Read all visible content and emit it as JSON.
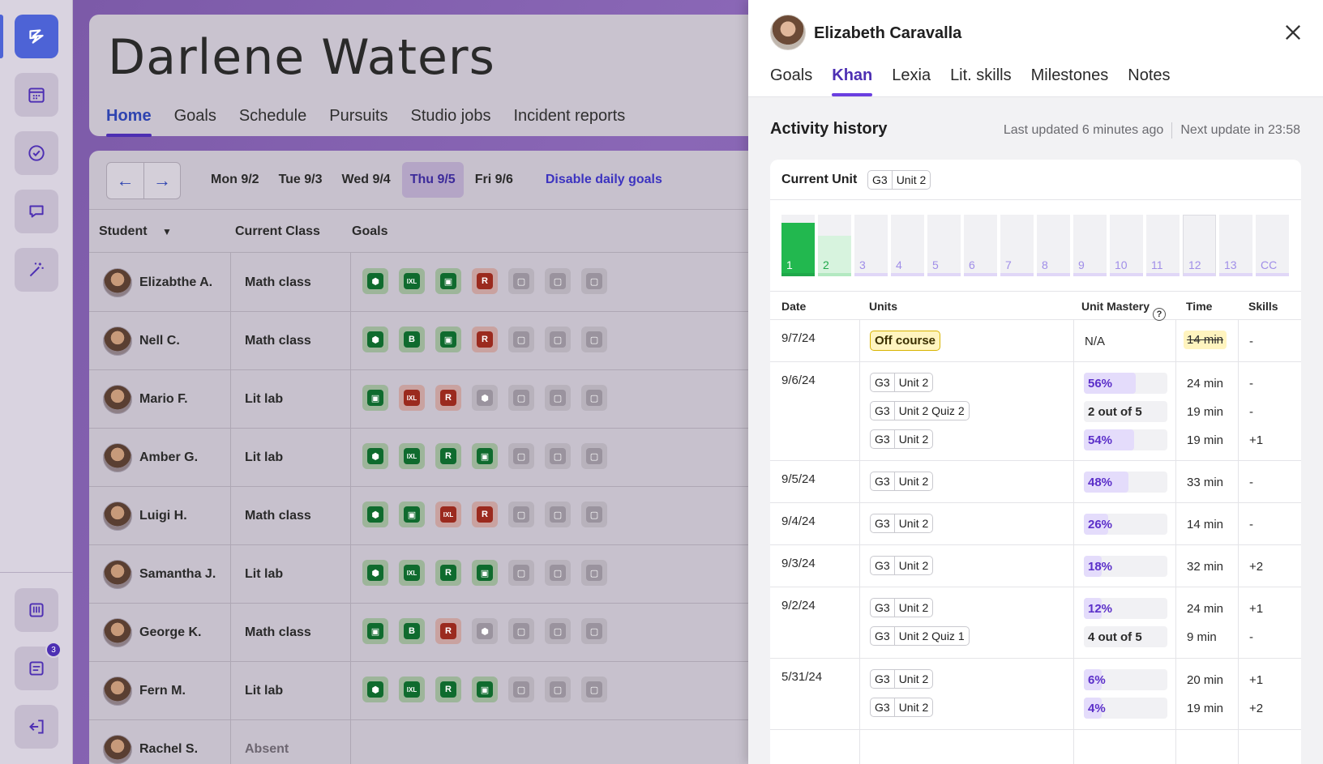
{
  "student": {
    "name": "Darlene Waters",
    "nav": [
      "Home",
      "Goals",
      "Schedule",
      "Pursuits",
      "Studio jobs",
      "Incident reports"
    ]
  },
  "rail": {
    "badge_count": "3"
  },
  "schedule": {
    "days": [
      "Mon 9/2",
      "Tue 9/3",
      "Wed 9/4",
      "Thu 9/5",
      "Fri 9/6"
    ],
    "active_day": "Thu 9/5",
    "disable_link": "Disable daily goals",
    "headers": {
      "student": "Student",
      "class": "Current Class",
      "goals": "Goals"
    },
    "rows": [
      {
        "name": "Elizabthe A.",
        "class": "Math class",
        "goals": [
          "done-hex",
          "done-ixl",
          "done-book",
          "miss-r",
          "none",
          "none",
          "none"
        ]
      },
      {
        "name": "Nell C.",
        "class": "Math class",
        "goals": [
          "done-hex",
          "done-b",
          "done-book",
          "miss-r",
          "none",
          "none",
          "none"
        ]
      },
      {
        "name": "Mario F.",
        "class": "Lit lab",
        "goals": [
          "done-book",
          "miss-ixl",
          "miss-r",
          "none-hex",
          "none",
          "none",
          "none"
        ]
      },
      {
        "name": "Amber G.",
        "class": "Lit lab",
        "goals": [
          "done-hex",
          "done-ixl",
          "done-r",
          "done-book",
          "none",
          "none",
          "none"
        ]
      },
      {
        "name": "Luigi H.",
        "class": "Math class",
        "goals": [
          "done-hex",
          "done-book",
          "miss-ixl",
          "miss-r",
          "none",
          "none",
          "none"
        ]
      },
      {
        "name": "Samantha J.",
        "class": "Lit lab",
        "goals": [
          "done-hex",
          "done-ixl",
          "done-r",
          "done-book",
          "none",
          "none",
          "none"
        ]
      },
      {
        "name": "George K.",
        "class": "Math class",
        "goals": [
          "done-book",
          "done-b",
          "miss-r",
          "none-hex",
          "none",
          "none",
          "none"
        ]
      },
      {
        "name": "Fern M.",
        "class": "Lit lab",
        "goals": [
          "done-hex",
          "done-ixl",
          "done-r",
          "done-book",
          "none",
          "none",
          "none"
        ]
      },
      {
        "name": "Rachel S.",
        "class": "Absent",
        "goals": []
      }
    ]
  },
  "drawer": {
    "name": "Elizabeth Caravalla",
    "tabs": [
      "Goals",
      "Khan",
      "Lexia",
      "Lit. skills",
      "Milestones",
      "Notes"
    ],
    "active_tab": "Khan",
    "activity_title": "Activity history",
    "last_updated": "Last updated 6 minutes ago",
    "next_update": "Next update in 23:58",
    "current_unit_label": "Current Unit",
    "current_unit": {
      "grade": "G3",
      "unit": "Unit 2"
    },
    "units": [
      {
        "label": "1",
        "state": "done"
      },
      {
        "label": "2",
        "state": "partial"
      },
      {
        "label": "3",
        "state": "empty"
      },
      {
        "label": "4",
        "state": "empty"
      },
      {
        "label": "5",
        "state": "empty"
      },
      {
        "label": "6",
        "state": "empty"
      },
      {
        "label": "7",
        "state": "empty"
      },
      {
        "label": "8",
        "state": "empty"
      },
      {
        "label": "9",
        "state": "empty"
      },
      {
        "label": "10",
        "state": "empty"
      },
      {
        "label": "11",
        "state": "empty"
      },
      {
        "label": "12",
        "state": "outline"
      },
      {
        "label": "13",
        "state": "empty"
      },
      {
        "label": "CC",
        "state": "empty"
      }
    ],
    "history_headers": {
      "date": "Date",
      "units": "Units",
      "mastery": "Unit Mastery",
      "time": "Time",
      "skills": "Skills"
    },
    "help_glyph": "?",
    "history": [
      {
        "date": "9/7/24",
        "entries": [
          {
            "off_course": "Off course",
            "mastery_text": "N/A",
            "time": "14 min",
            "time_strike": true,
            "skills": "-"
          }
        ]
      },
      {
        "date": "9/6/24",
        "entries": [
          {
            "grade": "G3",
            "unit": "Unit 2",
            "mastery": 56,
            "mastery_label": "56%",
            "time": "24 min",
            "skills": "-"
          },
          {
            "grade": "G3",
            "unit": "Unit 2 Quiz 2",
            "mastery_label": "2 out of 5",
            "plain": true,
            "time": "19 min",
            "skills": "-"
          },
          {
            "grade": "G3",
            "unit": "Unit 2",
            "mastery": 54,
            "mastery_label": "54%",
            "time": "19 min",
            "skills": "+1"
          }
        ]
      },
      {
        "date": "9/5/24",
        "entries": [
          {
            "grade": "G3",
            "unit": "Unit 2",
            "mastery": 48,
            "mastery_label": "48%",
            "time": "33 min",
            "skills": "-"
          }
        ]
      },
      {
        "date": "9/4/24",
        "entries": [
          {
            "grade": "G3",
            "unit": "Unit 2",
            "mastery": 26,
            "mastery_label": "26%",
            "time": "14 min",
            "skills": "-"
          }
        ]
      },
      {
        "date": "9/3/24",
        "entries": [
          {
            "grade": "G3",
            "unit": "Unit 2",
            "mastery": 18,
            "mastery_label": "18%",
            "time": "32 min",
            "skills": "+2"
          }
        ]
      },
      {
        "date": "9/2/24",
        "entries": [
          {
            "grade": "G3",
            "unit": "Unit 2",
            "mastery": 12,
            "mastery_label": "12%",
            "time": "24 min",
            "skills": "+1"
          },
          {
            "grade": "G3",
            "unit": "Unit 2 Quiz 1",
            "mastery_label": "4 out of 5",
            "plain": true,
            "time": "9 min",
            "skills": "-"
          }
        ]
      },
      {
        "date": "5/31/24",
        "entries": [
          {
            "grade": "G3",
            "unit": "Unit 2",
            "mastery": 6,
            "mastery_label": "6%",
            "time": "20 min",
            "skills": "+1"
          },
          {
            "grade": "G3",
            "unit": "Unit 2",
            "mastery": 4,
            "mastery_label": "4%",
            "time": "19 min",
            "skills": "+2"
          }
        ]
      }
    ]
  }
}
